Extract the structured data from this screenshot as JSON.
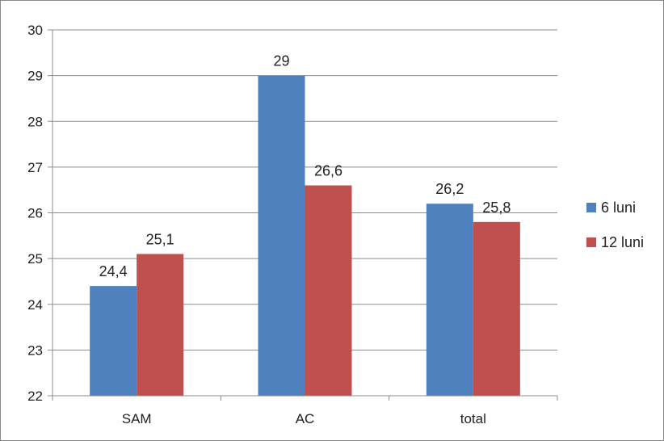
{
  "chart_data": {
    "type": "bar",
    "categories": [
      "SAM",
      "AC",
      "total"
    ],
    "series": [
      {
        "name": "6 luni",
        "values": [
          24.4,
          29,
          26.2
        ],
        "labels": [
          "24,4",
          "29",
          "26,2"
        ],
        "color": "#4f81bd"
      },
      {
        "name": "12 luni",
        "values": [
          25.1,
          26.6,
          25.8
        ],
        "labels": [
          "25,1",
          "26,6",
          "25,8"
        ],
        "color": "#c0504d"
      }
    ],
    "ylim": [
      22,
      30
    ],
    "yticks": [
      22,
      23,
      24,
      25,
      26,
      27,
      28,
      29,
      30
    ],
    "grid": true,
    "gridColor": "#8c8c8c",
    "legend": "right"
  }
}
